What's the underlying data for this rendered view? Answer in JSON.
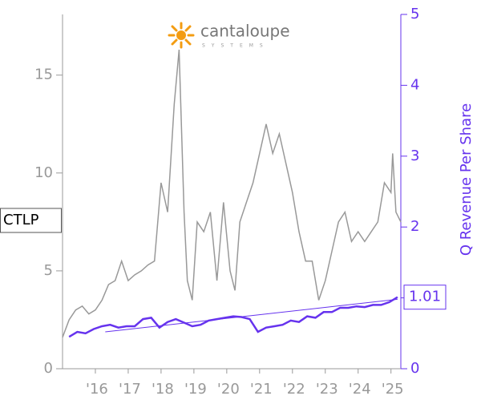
{
  "chart_data": {
    "type": "line",
    "annotations": [
      "CTLP",
      "cantaloupe",
      "SYSTEMS"
    ],
    "y2label": "Q Revenue Per Share",
    "xlim": [
      2015.0,
      2025.3
    ],
    "xticks": [
      {
        "value": 2016,
        "label": "'16"
      },
      {
        "value": 2017,
        "label": "'17"
      },
      {
        "value": 2018,
        "label": "'18"
      },
      {
        "value": 2019,
        "label": "'19"
      },
      {
        "value": 2020,
        "label": "'20"
      },
      {
        "value": 2021,
        "label": "'21"
      },
      {
        "value": 2022,
        "label": "'22"
      },
      {
        "value": 2023,
        "label": "'23"
      },
      {
        "value": 2024,
        "label": "'24"
      },
      {
        "value": 2025,
        "label": "'25"
      }
    ],
    "ylim": [
      0,
      18.1
    ],
    "yticks": [
      0,
      5,
      10,
      15
    ],
    "y2lim": [
      0,
      5
    ],
    "y2ticks": [
      0,
      1,
      2,
      3,
      4,
      5
    ],
    "series": [
      {
        "color": "#999999",
        "x": [
          2015.0,
          2015.2,
          2015.4,
          2015.6,
          2015.8,
          2016.0,
          2016.2,
          2016.4,
          2016.6,
          2016.8,
          2017.0,
          2017.2,
          2017.4,
          2017.6,
          2017.8,
          2018.0,
          2018.2,
          2018.4,
          2018.55,
          2018.7,
          2018.8,
          2018.95,
          2019.1,
          2019.3,
          2019.5,
          2019.7,
          2019.9,
          2020.1,
          2020.25,
          2020.4,
          2020.6,
          2020.8,
          2021.0,
          2021.2,
          2021.4,
          2021.6,
          2021.8,
          2022.0,
          2022.2,
          2022.4,
          2022.6,
          2022.8,
          2023.0,
          2023.2,
          2023.4,
          2023.6,
          2023.8,
          2024.0,
          2024.2,
          2024.4,
          2024.6,
          2024.8,
          2025.0,
          2025.05,
          2025.15,
          2025.3
        ],
        "values": [
          1.6,
          2.5,
          3.0,
          3.2,
          2.8,
          3.0,
          3.5,
          4.3,
          4.5,
          5.5,
          4.5,
          4.8,
          5.0,
          5.3,
          5.5,
          9.5,
          8.0,
          13.5,
          16.3,
          8.0,
          4.5,
          3.5,
          7.5,
          7.0,
          8.0,
          4.5,
          8.5,
          5.0,
          4.0,
          7.5,
          8.5,
          9.5,
          11.0,
          12.5,
          11.0,
          12.0,
          10.5,
          9.0,
          7.0,
          5.5,
          5.5,
          3.5,
          4.5,
          6.0,
          7.5,
          8.0,
          6.5,
          7.0,
          6.5,
          7.0,
          7.5,
          9.5,
          9.0,
          11.0,
          8.0,
          7.5
        ]
      },
      {
        "color": "#6633ee",
        "axis": "y2",
        "x": [
          2015.2,
          2015.45,
          2015.7,
          2015.95,
          2016.2,
          2016.45,
          2016.7,
          2016.95,
          2017.2,
          2017.45,
          2017.7,
          2017.95,
          2018.2,
          2018.45,
          2018.7,
          2018.95,
          2019.2,
          2019.45,
          2019.7,
          2019.95,
          2020.2,
          2020.45,
          2020.7,
          2020.95,
          2021.2,
          2021.45,
          2021.7,
          2021.95,
          2022.2,
          2022.45,
          2022.7,
          2022.95,
          2023.2,
          2023.45,
          2023.7,
          2023.95,
          2024.2,
          2024.45,
          2024.7,
          2024.95,
          2025.2
        ],
        "values": [
          0.45,
          0.52,
          0.5,
          0.56,
          0.6,
          0.62,
          0.58,
          0.6,
          0.6,
          0.7,
          0.72,
          0.58,
          0.66,
          0.7,
          0.65,
          0.6,
          0.62,
          0.68,
          0.7,
          0.72,
          0.74,
          0.73,
          0.7,
          0.52,
          0.58,
          0.6,
          0.62,
          0.68,
          0.66,
          0.74,
          0.72,
          0.8,
          0.8,
          0.86,
          0.86,
          0.88,
          0.87,
          0.9,
          0.9,
          0.94,
          1.01
        ]
      },
      {
        "color": "#6633ee",
        "axis": "y2",
        "x": [
          2016.3,
          2025.2
        ],
        "values": [
          0.52,
          0.98
        ]
      }
    ]
  }
}
